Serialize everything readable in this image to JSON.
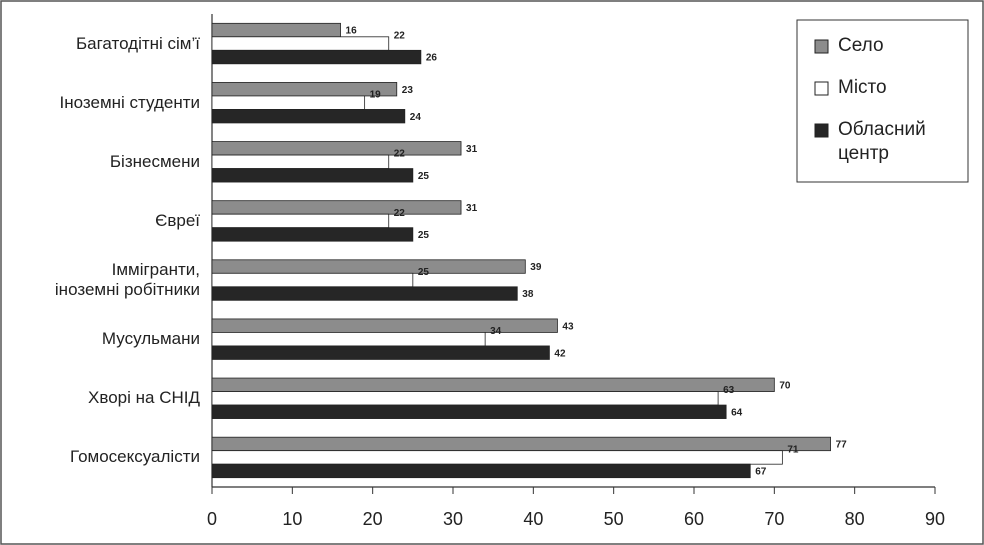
{
  "chart_data": {
    "type": "hbar",
    "categories": [
      "Багатодітні сім’ї",
      "Іноземні студенти",
      "Бізнесмени",
      "Євреї",
      "Іммігранти,\nіноземні робітники",
      "Мусульмани",
      "Хворі на СНІД",
      "Гомосексуалісти"
    ],
    "series": [
      {
        "name": "Село",
        "color": "#8c8c8c",
        "values": [
          16,
          23,
          31,
          31,
          39,
          43,
          70,
          77
        ]
      },
      {
        "name": "Місто",
        "color": "#ffffff",
        "values": [
          22,
          19,
          22,
          22,
          25,
          34,
          63,
          71
        ]
      },
      {
        "name": "Обласний центр",
        "color": "#262626",
        "values": [
          26,
          24,
          25,
          25,
          38,
          42,
          64,
          67
        ]
      }
    ],
    "xlim": [
      0,
      90
    ],
    "xticks": [
      0,
      10,
      20,
      30,
      40,
      50,
      60,
      70,
      80,
      90
    ],
    "legend": "upper right"
  }
}
